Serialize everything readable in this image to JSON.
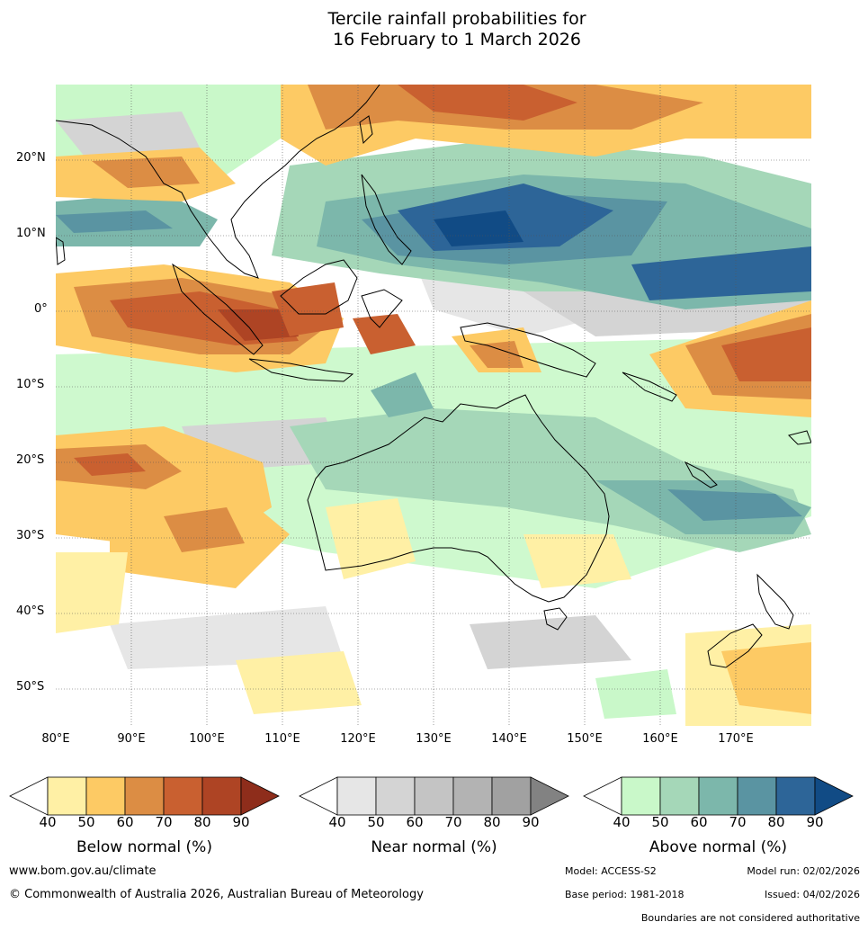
{
  "title_line1": "Tercile rainfall probabilities for",
  "title_line2": "16 February to 1 March 2026",
  "map": {
    "lon_range": [
      80,
      180
    ],
    "lat_range": [
      -55,
      30
    ],
    "lat_labels": [
      "20°N",
      "10°N",
      "0°",
      "10°S",
      "20°S",
      "30°S",
      "40°S",
      "50°S"
    ],
    "lon_labels": [
      "80°E",
      "90°E",
      "100°E",
      "110°E",
      "120°E",
      "130°E",
      "140°E",
      "150°E",
      "160°E",
      "170°E"
    ],
    "grid": true
  },
  "legends": [
    {
      "title": "Below normal (%)",
      "ticks": [
        "40",
        "50",
        "60",
        "70",
        "80",
        "90"
      ],
      "colors": [
        "#fff0a5",
        "#fdca64",
        "#dc8d44",
        "#c96030",
        "#ae4424",
        "#8e2d1b"
      ]
    },
    {
      "title": "Near normal (%)",
      "ticks": [
        "40",
        "50",
        "60",
        "70",
        "80",
        "90"
      ],
      "colors": [
        "#e6e6e6",
        "#d4d4d4",
        "#c4c4c4",
        "#b3b3b3",
        "#a1a1a1",
        "#828282"
      ]
    },
    {
      "title": "Above normal (%)",
      "ticks": [
        "40",
        "50",
        "60",
        "70",
        "80",
        "90"
      ],
      "colors": [
        "#c9f8c9",
        "#a5d7b8",
        "#7cb7ab",
        "#5a94a2",
        "#2d6598",
        "#114b85"
      ]
    }
  ],
  "footer": {
    "website": "www.bom.gov.au/climate",
    "copyright": "© Commonwealth of Australia 2026, Australian Bureau of Meteorology",
    "model": "Model: ACCESS-S2",
    "model_run": "Model run: 02/02/2026",
    "base_period": "Base period: 1981-2018",
    "issued": "Issued: 04/02/2026",
    "disclaimer": "Boundaries are not considered authoritative"
  }
}
